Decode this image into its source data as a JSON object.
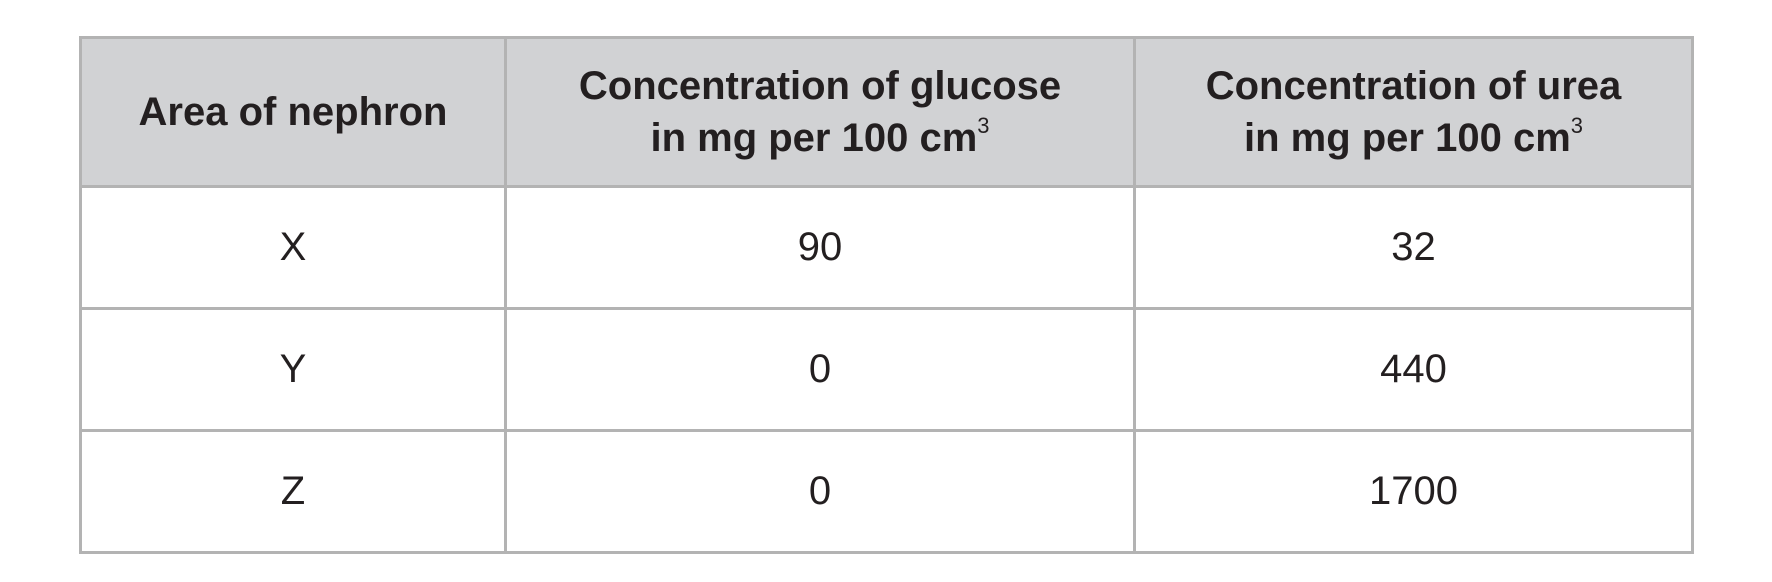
{
  "table": {
    "headers": [
      {
        "lines": [
          "Area of nephron"
        ]
      },
      {
        "lines": [
          "Concentration of glucose",
          "in mg per 100 cm"
        ],
        "superscript": "3"
      },
      {
        "lines": [
          "Concentration of urea",
          "in mg per 100 cm"
        ],
        "superscript": "3"
      }
    ],
    "rows": [
      [
        "X",
        90,
        32
      ],
      [
        "Y",
        0,
        440
      ],
      [
        "Z",
        0,
        1700
      ]
    ]
  }
}
